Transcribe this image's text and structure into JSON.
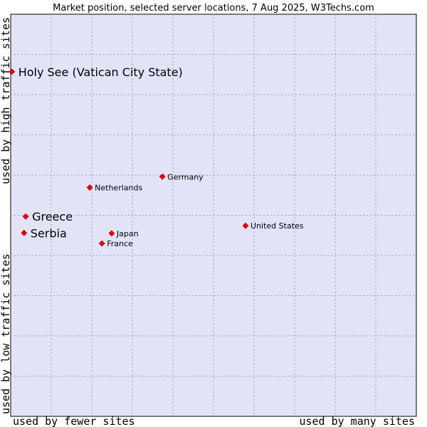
{
  "chart_data": {
    "type": "scatter",
    "title": "Market position, selected server locations, 7 Aug 2025, W3Techs.com",
    "x_axis": {
      "left_label": "used by fewer sites",
      "right_label": "used by many sites"
    },
    "y_axis": {
      "top_label": "used by high traffic sites",
      "bottom_label": "used by low traffic sites"
    },
    "grid": true,
    "background_color": "#e3e3f8",
    "point_color": "#ee0000",
    "points": [
      {
        "label": "Holy See (Vatican City State)",
        "x": 0.003,
        "y": 0.857,
        "emphasis": true
      },
      {
        "label": "Germany",
        "x": 0.374,
        "y": 0.596,
        "emphasis": false
      },
      {
        "label": "Netherlands",
        "x": 0.195,
        "y": 0.569,
        "emphasis": false
      },
      {
        "label": "Greece",
        "x": 0.037,
        "y": 0.497,
        "emphasis": true
      },
      {
        "label": "United States",
        "x": 0.579,
        "y": 0.474,
        "emphasis": false
      },
      {
        "label": "Serbia",
        "x": 0.033,
        "y": 0.456,
        "emphasis": true
      },
      {
        "label": "Japan",
        "x": 0.249,
        "y": 0.455,
        "emphasis": false
      },
      {
        "label": "France",
        "x": 0.225,
        "y": 0.43,
        "emphasis": false
      }
    ]
  }
}
